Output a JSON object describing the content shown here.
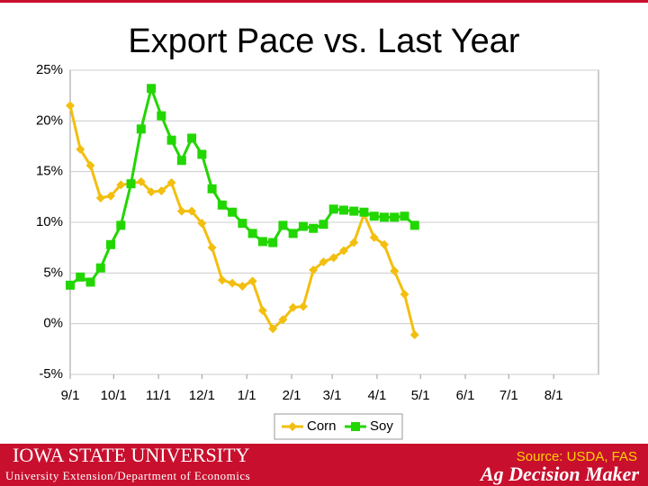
{
  "chart_data": {
    "type": "line",
    "title": "Export Pace vs. Last Year",
    "xlim": [
      0,
      365
    ],
    "xticks": [
      {
        "value": 0,
        "label": "9/1"
      },
      {
        "value": 30,
        "label": "10/1"
      },
      {
        "value": 61,
        "label": "11/1"
      },
      {
        "value": 91,
        "label": "12/1"
      },
      {
        "value": 122,
        "label": "1/1"
      },
      {
        "value": 153,
        "label": "2/1"
      },
      {
        "value": 181,
        "label": "3/1"
      },
      {
        "value": 212,
        "label": "4/1"
      },
      {
        "value": 242,
        "label": "5/1"
      },
      {
        "value": 273,
        "label": "6/1"
      },
      {
        "value": 303,
        "label": "7/1"
      },
      {
        "value": 334,
        "label": "8/1"
      }
    ],
    "ylim": [
      -5,
      25
    ],
    "yticks": [
      {
        "value": -5,
        "label": "-5%"
      },
      {
        "value": 0,
        "label": "0%"
      },
      {
        "value": 5,
        "label": "5%"
      },
      {
        "value": 10,
        "label": "10%"
      },
      {
        "value": 15,
        "label": "15%"
      },
      {
        "value": 20,
        "label": "20%"
      },
      {
        "value": 25,
        "label": "25%"
      }
    ],
    "grid": true,
    "legend": "bottom",
    "x": [
      0,
      7,
      14,
      21,
      28,
      35,
      42,
      49,
      56,
      63,
      70,
      77,
      84,
      91,
      98,
      105,
      112,
      119,
      126,
      133,
      140,
      147,
      154,
      161,
      168,
      175,
      182,
      189,
      196,
      203,
      210,
      217,
      224,
      231,
      238
    ],
    "series": [
      {
        "name": "Corn",
        "color": "#f2bf10",
        "marker": "diamond",
        "values": [
          21.5,
          17.2,
          15.6,
          12.4,
          12.6,
          13.7,
          13.8,
          14.0,
          13.0,
          13.1,
          13.9,
          11.1,
          11.1,
          9.9,
          7.5,
          4.3,
          4.0,
          3.7,
          4.2,
          1.3,
          -0.5,
          0.4,
          1.6,
          1.7,
          5.3,
          6.1,
          6.5,
          7.2,
          8.0,
          10.8,
          8.5,
          7.8,
          5.2,
          2.9,
          -1.1
        ]
      },
      {
        "name": "Soy",
        "color": "#22d600",
        "marker": "square",
        "values": [
          3.8,
          4.6,
          4.1,
          5.5,
          7.8,
          9.7,
          13.8,
          19.2,
          23.2,
          20.5,
          18.1,
          16.1,
          18.3,
          16.7,
          13.3,
          11.7,
          11.0,
          9.9,
          8.9,
          8.1,
          8.0,
          9.7,
          8.9,
          9.6,
          9.4,
          9.8,
          11.3,
          11.2,
          11.1,
          11.0,
          10.6,
          10.5,
          10.5,
          10.6,
          9.7
        ]
      }
    ]
  },
  "footer": {
    "university": "Iowa State University",
    "department": "University Extension/Department of Economics",
    "source": "Source: USDA, FAS",
    "brand": "Ag Decision Maker"
  }
}
